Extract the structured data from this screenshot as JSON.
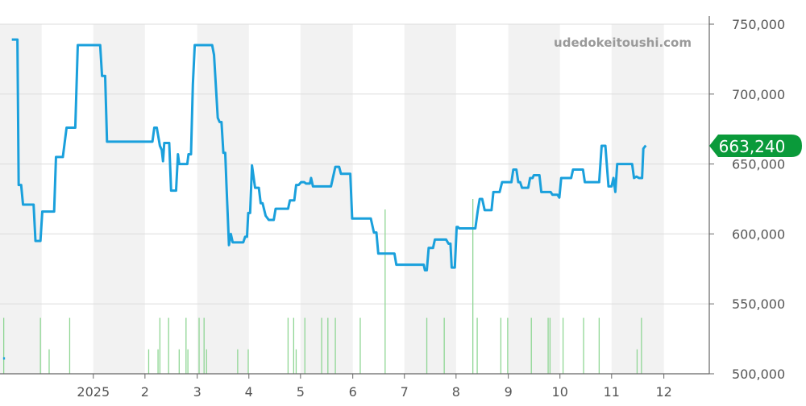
{
  "watermark": "udedokeitoushi.com",
  "current_price_label": "663,240",
  "colors": {
    "line": "#1aa0dc",
    "volume": "#8fd694",
    "badge": "#0a9a3a",
    "band": "#f2f2f2",
    "grid": "#dcdcdc",
    "axis_text": "#555555",
    "watermark": "#9a9a9a"
  },
  "chart_data": {
    "type": "line",
    "xlabel": "",
    "ylabel": "",
    "ylim": [
      500000,
      750000
    ],
    "y_ticks": [
      500000,
      550000,
      600000,
      650000,
      700000,
      750000
    ],
    "y_tick_labels": [
      "500,000",
      "550,000",
      "600,000",
      "650,000",
      "700,000",
      "750,000"
    ],
    "x_range": [
      2024.85,
      2025.99
    ],
    "x_ticks": [
      2025.0,
      2025.083,
      2025.167,
      2025.25,
      2025.333,
      2025.417,
      2025.5,
      2025.583,
      2025.667,
      2025.75,
      2025.833,
      2025.917
    ],
    "x_tick_labels": [
      "2025",
      "2",
      "3",
      "4",
      "5",
      "6",
      "7",
      "8",
      "9",
      "10",
      "11",
      "12"
    ],
    "grid": true,
    "series": [
      {
        "name": "",
        "type": "line",
        "values": [
          [
            2024.855,
            511000
          ],
          [
            2024.858,
            511000
          ],
          [
            2024.869,
            739000
          ],
          [
            2024.878,
            739000
          ],
          [
            2024.88,
            635000
          ],
          [
            2024.884,
            635000
          ],
          [
            2024.887,
            621000
          ],
          [
            2024.904,
            621000
          ],
          [
            2024.907,
            595000
          ],
          [
            2024.915,
            595000
          ],
          [
            2024.918,
            616000
          ],
          [
            2024.937,
            616000
          ],
          [
            2024.94,
            655000
          ],
          [
            2024.951,
            655000
          ],
          [
            2024.957,
            676000
          ],
          [
            2024.971,
            676000
          ],
          [
            2024.975,
            735000
          ],
          [
            2025.011,
            735000
          ],
          [
            2025.014,
            713000
          ],
          [
            2025.019,
            713000
          ],
          [
            2025.022,
            666000
          ],
          [
            2025.095,
            666000
          ],
          [
            2025.098,
            676000
          ],
          [
            2025.102,
            676000
          ],
          [
            2025.107,
            663000
          ],
          [
            2025.11,
            660000
          ],
          [
            2025.112,
            652000
          ],
          [
            2025.114,
            665000
          ],
          [
            2025.122,
            665000
          ],
          [
            2025.125,
            631000
          ],
          [
            2025.133,
            631000
          ],
          [
            2025.136,
            657000
          ],
          [
            2025.138,
            650000
          ],
          [
            2025.151,
            650000
          ],
          [
            2025.153,
            657000
          ],
          [
            2025.157,
            657000
          ],
          [
            2025.16,
            707000
          ],
          [
            2025.163,
            735000
          ],
          [
            2025.191,
            735000
          ],
          [
            2025.194,
            728000
          ],
          [
            2025.2,
            683000
          ],
          [
            2025.203,
            680000
          ],
          [
            2025.206,
            680000
          ],
          [
            2025.209,
            658000
          ],
          [
            2025.212,
            658000
          ],
          [
            2025.214,
            635000
          ],
          [
            2025.218,
            592000
          ],
          [
            2025.221,
            600000
          ],
          [
            2025.224,
            594000
          ],
          [
            2025.241,
            594000
          ],
          [
            2025.244,
            598000
          ],
          [
            2025.247,
            598000
          ],
          [
            2025.249,
            615000
          ],
          [
            2025.252,
            615000
          ],
          [
            2025.255,
            649000
          ],
          [
            2025.26,
            633000
          ],
          [
            2025.266,
            633000
          ],
          [
            2025.269,
            622000
          ],
          [
            2025.272,
            622000
          ],
          [
            2025.277,
            613000
          ],
          [
            2025.282,
            610000
          ],
          [
            2025.29,
            610000
          ],
          [
            2025.293,
            618000
          ],
          [
            2025.313,
            618000
          ],
          [
            2025.316,
            624000
          ],
          [
            2025.323,
            624000
          ],
          [
            2025.326,
            635000
          ],
          [
            2025.33,
            635000
          ],
          [
            2025.334,
            637000
          ],
          [
            2025.339,
            637000
          ],
          [
            2025.342,
            636000
          ],
          [
            2025.348,
            636000
          ],
          [
            2025.35,
            640000
          ],
          [
            2025.353,
            634000
          ],
          [
            2025.382,
            634000
          ],
          [
            2025.386,
            642000
          ],
          [
            2025.389,
            648000
          ],
          [
            2025.395,
            648000
          ],
          [
            2025.398,
            643000
          ],
          [
            2025.413,
            643000
          ],
          [
            2025.416,
            611000
          ],
          [
            2025.446,
            611000
          ],
          [
            2025.451,
            601000
          ],
          [
            2025.455,
            601000
          ],
          [
            2025.458,
            586000
          ],
          [
            2025.484,
            586000
          ],
          [
            2025.487,
            578000
          ],
          [
            2025.531,
            578000
          ],
          [
            2025.533,
            574000
          ],
          [
            2025.536,
            574000
          ],
          [
            2025.539,
            590000
          ],
          [
            2025.546,
            590000
          ],
          [
            2025.549,
            596000
          ],
          [
            2025.567,
            596000
          ],
          [
            2025.571,
            593000
          ],
          [
            2025.574,
            593000
          ],
          [
            2025.576,
            576000
          ],
          [
            2025.581,
            576000
          ],
          [
            2025.584,
            605000
          ],
          [
            2025.586,
            605000
          ],
          [
            2025.588,
            604000
          ],
          [
            2025.614,
            604000
          ],
          [
            2025.618,
            617000
          ],
          [
            2025.621,
            625000
          ],
          [
            2025.625,
            625000
          ],
          [
            2025.629,
            617000
          ],
          [
            2025.64,
            617000
          ],
          [
            2025.643,
            630000
          ],
          [
            2025.653,
            630000
          ],
          [
            2025.657,
            637000
          ],
          [
            2025.672,
            637000
          ],
          [
            2025.675,
            646000
          ],
          [
            2025.68,
            646000
          ],
          [
            2025.683,
            637000
          ],
          [
            2025.686,
            637000
          ],
          [
            2025.689,
            633000
          ],
          [
            2025.699,
            633000
          ],
          [
            2025.702,
            640000
          ],
          [
            2025.706,
            640000
          ],
          [
            2025.708,
            642000
          ],
          [
            2025.717,
            642000
          ],
          [
            2025.72,
            630000
          ],
          [
            2025.735,
            630000
          ],
          [
            2025.738,
            628000
          ],
          [
            2025.746,
            628000
          ],
          [
            2025.749,
            626000
          ],
          [
            2025.752,
            640000
          ],
          [
            2025.768,
            640000
          ],
          [
            2025.771,
            646000
          ],
          [
            2025.787,
            646000
          ],
          [
            2025.79,
            637000
          ],
          [
            2025.813,
            637000
          ],
          [
            2025.817,
            663000
          ],
          [
            2025.823,
            663000
          ],
          [
            2025.828,
            634000
          ],
          [
            2025.833,
            634000
          ],
          [
            2025.836,
            640000
          ],
          [
            2025.839,
            630000
          ],
          [
            2025.842,
            650000
          ],
          [
            2025.866,
            650000
          ],
          [
            2025.869,
            640000
          ],
          [
            2025.873,
            641000
          ],
          [
            2025.877,
            640000
          ],
          [
            2025.882,
            640000
          ],
          [
            2025.884,
            661000
          ],
          [
            2025.888,
            663240
          ]
        ]
      }
    ],
    "volume": [
      [
        2024.856,
        16
      ],
      [
        2024.915,
        16
      ],
      [
        2024.929,
        7
      ],
      [
        2024.962,
        16
      ],
      [
        2025.089,
        7
      ],
      [
        2025.104,
        7
      ],
      [
        2025.107,
        16
      ],
      [
        2025.121,
        16
      ],
      [
        2025.138,
        7
      ],
      [
        2025.149,
        16
      ],
      [
        2025.152,
        7
      ],
      [
        2025.17,
        16
      ],
      [
        2025.178,
        16
      ],
      [
        2025.182,
        7
      ],
      [
        2025.232,
        7
      ],
      [
        2025.249,
        7
      ],
      [
        2025.313,
        16
      ],
      [
        2025.322,
        16
      ],
      [
        2025.326,
        7
      ],
      [
        2025.34,
        16
      ],
      [
        2025.367,
        16
      ],
      [
        2025.377,
        16
      ],
      [
        2025.389,
        16
      ],
      [
        2025.429,
        16
      ],
      [
        2025.469,
        47
      ],
      [
        2025.536,
        16
      ],
      [
        2025.564,
        16
      ],
      [
        2025.61,
        50
      ],
      [
        2025.617,
        16
      ],
      [
        2025.655,
        16
      ],
      [
        2025.666,
        16
      ],
      [
        2025.704,
        16
      ],
      [
        2025.731,
        16
      ],
      [
        2025.734,
        16
      ],
      [
        2025.755,
        16
      ],
      [
        2025.788,
        16
      ],
      [
        2025.813,
        16
      ],
      [
        2025.874,
        7
      ],
      [
        2025.881,
        16
      ]
    ]
  }
}
